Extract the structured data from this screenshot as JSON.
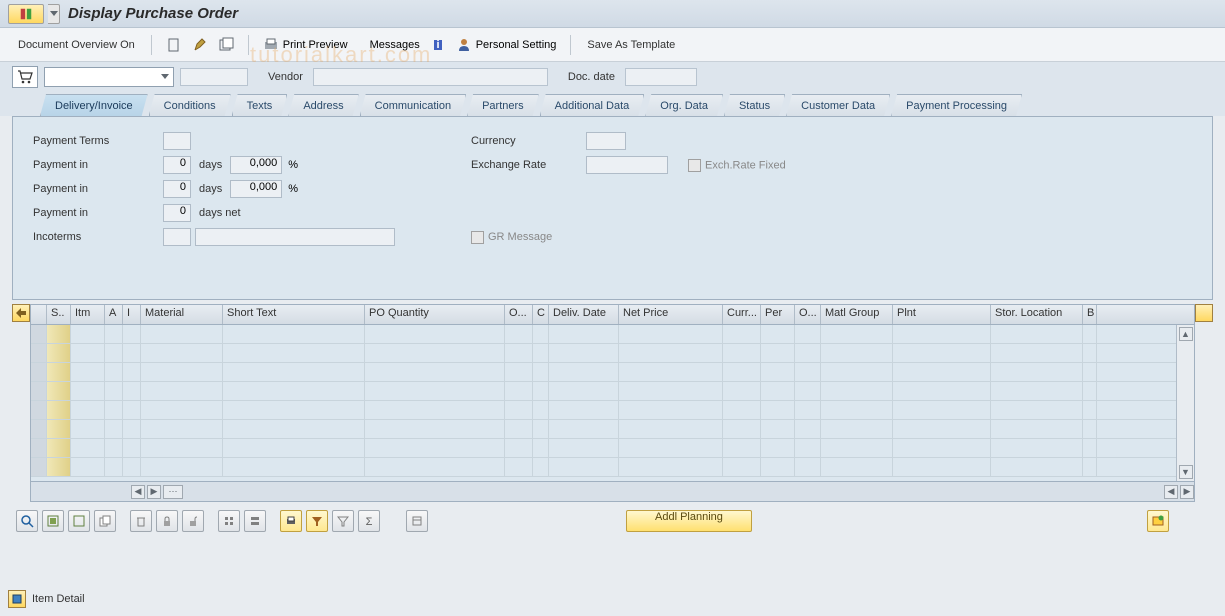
{
  "title": "Display Purchase Order",
  "toolbar": {
    "doc_overview": "Document Overview On",
    "print_preview": "Print Preview",
    "messages": "Messages",
    "personal_setting": "Personal Setting",
    "save_template": "Save As Template"
  },
  "header": {
    "vendor_label": "Vendor",
    "doc_date_label": "Doc. date"
  },
  "tabs": [
    "Delivery/Invoice",
    "Conditions",
    "Texts",
    "Address",
    "Communication",
    "Partners",
    "Additional Data",
    "Org. Data",
    "Status",
    "Customer Data",
    "Payment Processing"
  ],
  "active_tab": 0,
  "panel": {
    "payment_terms": "Payment Terms",
    "payment_in": "Payment in",
    "days": "days",
    "days_net": "days net",
    "incoterms": "Incoterms",
    "currency": "Currency",
    "exchange_rate": "Exchange Rate",
    "exch_rate_fixed": "Exch.Rate Fixed",
    "gr_message": "GR Message",
    "val_zero": "0",
    "val_pct": "0,000",
    "pct_sign": "%"
  },
  "grid": {
    "columns": [
      {
        "label": "",
        "w": 16
      },
      {
        "label": "S..",
        "w": 24
      },
      {
        "label": "Itm",
        "w": 34
      },
      {
        "label": "A",
        "w": 18
      },
      {
        "label": "I",
        "w": 18
      },
      {
        "label": "Material",
        "w": 82
      },
      {
        "label": "Short Text",
        "w": 142
      },
      {
        "label": "PO Quantity",
        "w": 140
      },
      {
        "label": "O...",
        "w": 28
      },
      {
        "label": "C",
        "w": 16
      },
      {
        "label": "Deliv. Date",
        "w": 70
      },
      {
        "label": "Net Price",
        "w": 104
      },
      {
        "label": "Curr...",
        "w": 38
      },
      {
        "label": "Per",
        "w": 34
      },
      {
        "label": "O...",
        "w": 26
      },
      {
        "label": "Matl Group",
        "w": 72
      },
      {
        "label": "Plnt",
        "w": 98
      },
      {
        "label": "Stor. Location",
        "w": 92
      },
      {
        "label": "B",
        "w": 14
      }
    ],
    "row_count": 8
  },
  "addl_planning": "Addl Planning",
  "footer": "Item Detail",
  "watermark": "tutorialkart.com",
  "colors": {
    "bg": "#e8ecf0",
    "panel": "#dce7ef",
    "tab_active": "#b8d4e8",
    "yellow_btn": "#ffe070",
    "border": "#a0b0c0"
  }
}
